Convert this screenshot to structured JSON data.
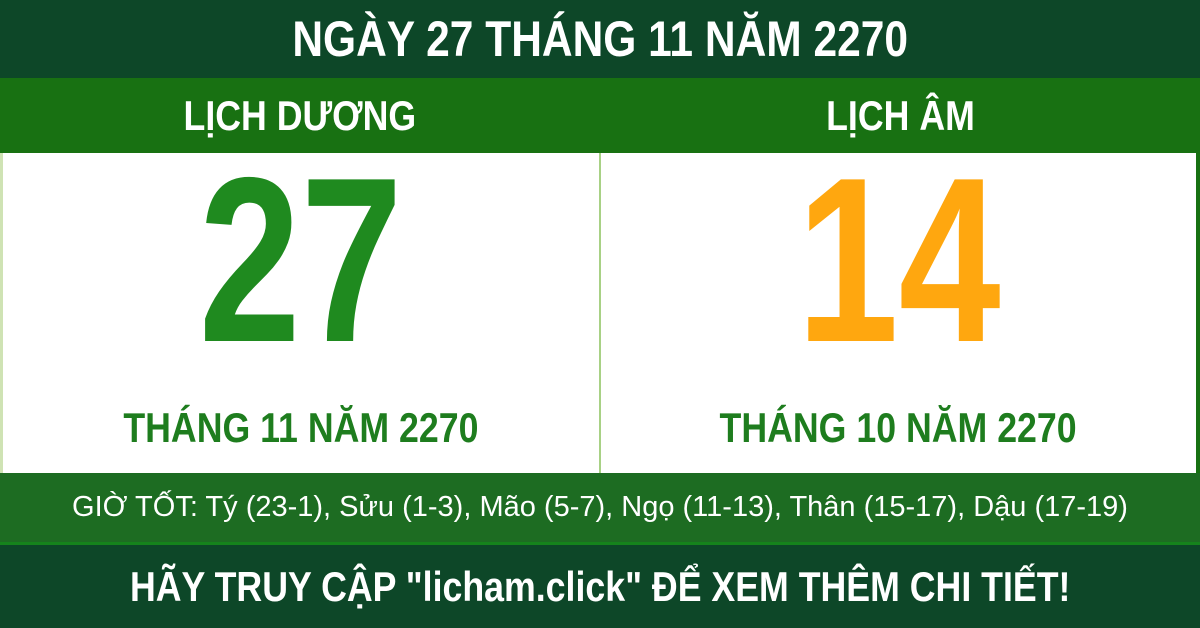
{
  "banner": {
    "title": "NGÀY 27 THÁNG 11 NĂM 2270",
    "solar": {
      "header": "LỊCH DƯƠNG",
      "day": "27",
      "month_year": "THÁNG 11 NĂM 2270"
    },
    "lunar": {
      "header": "LỊCH ÂM",
      "day": "14",
      "month_year": "THÁNG 10 NĂM 2270"
    },
    "good_hours": "GIỜ TỐT: Tý (23-1), Sửu (1-3), Mão (5-7), Ngọ (11-13), Thân (15-17), Dậu (17-19)",
    "footer": "HÃY TRUY CẬP \"licham.click\" ĐỂ XEM THÊM CHI TIẾT!",
    "colors": {
      "dark_green": "#0d4728",
      "bar_green": "#187112",
      "hours_green": "#1d6c22",
      "hours_edge": "#15831c",
      "day_solar": "#1f8a1f",
      "day_lunar": "#ffa70f",
      "month_text": "#1e7d1e",
      "divider": "#a8d185",
      "left_border": "#cfe3b4",
      "text_white": "#ffffff"
    }
  }
}
